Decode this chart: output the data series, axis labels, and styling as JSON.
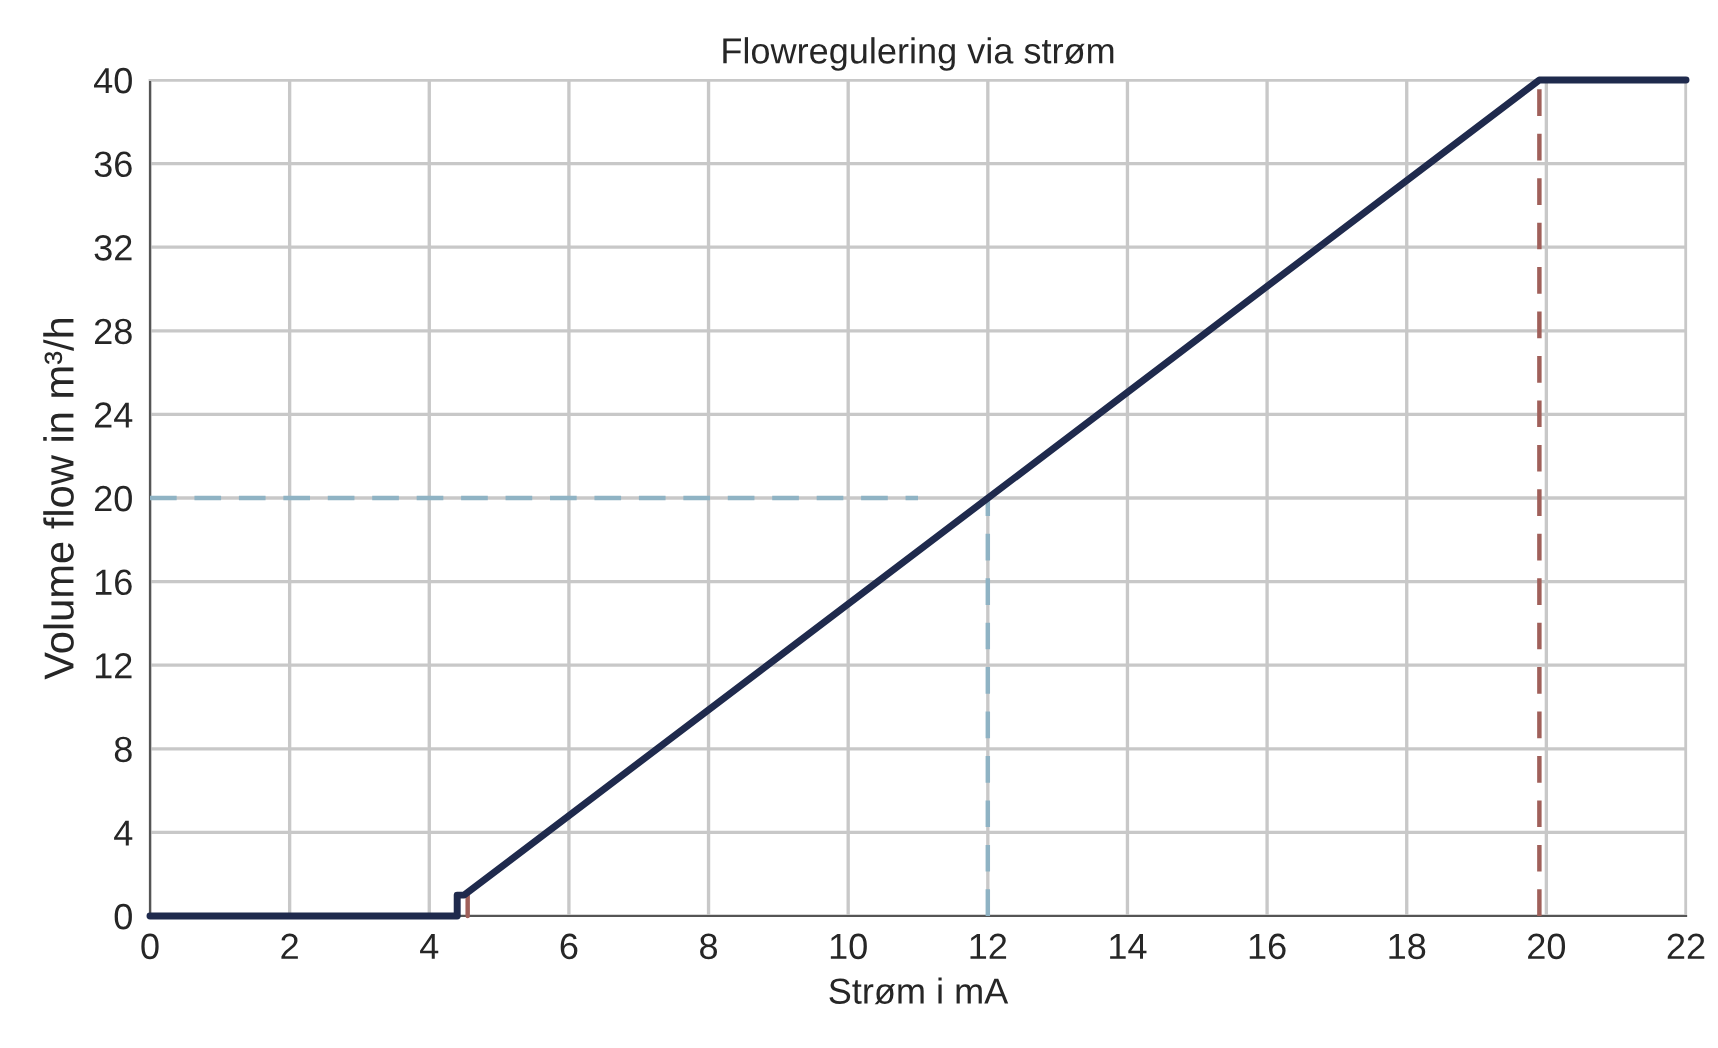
{
  "chart_data": {
    "type": "line",
    "title": "Flowregulering via strøm",
    "xlabel": "Strøm i mA",
    "ylabel": "Volume flow in m³/h",
    "xlim": [
      0,
      22
    ],
    "xticks": [
      0,
      2,
      4,
      6,
      8,
      10,
      12,
      14,
      16,
      18,
      20,
      22
    ],
    "ylim": [
      0,
      40
    ],
    "yticks": [
      0,
      4,
      8,
      12,
      16,
      20,
      24,
      28,
      32,
      36,
      40
    ],
    "grid": true,
    "marker": "none",
    "series": [
      {
        "color": "#8fb3c4",
        "line_style": "dashed",
        "x": [
          0,
          11
        ],
        "values": [
          20,
          20
        ]
      },
      {
        "color": "#8fb3c4",
        "line_style": "dashed",
        "x": [
          12,
          12
        ],
        "values": [
          0,
          20
        ]
      },
      {
        "color": "#a0605a",
        "line_style": "dashed",
        "x": [
          19.9,
          19.9
        ],
        "values": [
          0,
          40
        ]
      },
      {
        "color": "#a0605a",
        "line_style": "solid",
        "x": [
          4.55,
          4.55
        ],
        "values": [
          0,
          1
        ]
      },
      {
        "color": "#1f2a4d",
        "line_style": "solid",
        "x": [
          0,
          4.4,
          4.4,
          4.5,
          19.9,
          22
        ],
        "values": [
          0,
          0,
          1,
          1,
          40,
          40
        ]
      }
    ]
  }
}
